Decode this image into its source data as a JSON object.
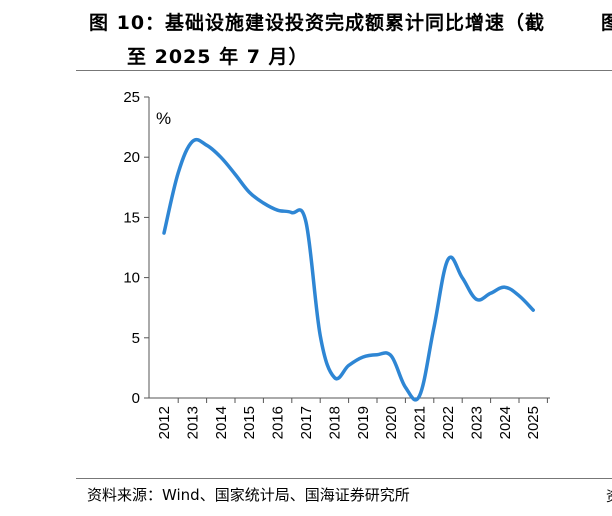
{
  "header": {
    "title_line1": "图 10：基础设施建设投资完成额累计同比增速（截",
    "title_line2": "至 2025 年 7 月）",
    "edge_fragment": "图"
  },
  "footer": {
    "source": "资料来源：Wind、国家统计局、国海证券研究所",
    "edge_fragment": "资"
  },
  "chart_data": {
    "type": "line",
    "title": "基础设施建设投资完成额累计同比增速（截至 2025 年 7 月）",
    "unit_label": "%",
    "xlabel": "",
    "ylabel": "",
    "categories": [
      "2012",
      "2013",
      "2014",
      "2015",
      "2016",
      "2017",
      "2018",
      "2019",
      "2020",
      "2021",
      "2022",
      "2023",
      "2024",
      "2025"
    ],
    "x": [
      2012.0,
      2012.5,
      2013.0,
      2013.5,
      2014.0,
      2014.5,
      2015.0,
      2015.5,
      2016.0,
      2016.5,
      2017.0,
      2017.5,
      2018.0,
      2018.5,
      2019.0,
      2019.5,
      2020.0,
      2020.5,
      2021.0,
      2021.5,
      2022.0,
      2022.5,
      2023.0,
      2023.5,
      2024.0,
      2024.5,
      2025.0
    ],
    "series": [
      {
        "values": [
          13.7,
          18.7,
          21.3,
          21.0,
          20.0,
          18.6,
          17.1,
          16.2,
          15.6,
          15.4,
          14.6,
          5.2,
          1.7,
          2.7,
          3.4,
          3.6,
          3.5,
          0.9,
          0.2,
          5.8,
          11.5,
          10.0,
          8.2,
          8.7,
          9.2,
          8.5,
          7.3
        ],
        "color": "#2e86d4"
      }
    ],
    "ylim": [
      0,
      25
    ],
    "yticks": [
      0,
      5,
      10,
      15,
      20,
      25
    ],
    "grid": false,
    "legend": "none"
  }
}
